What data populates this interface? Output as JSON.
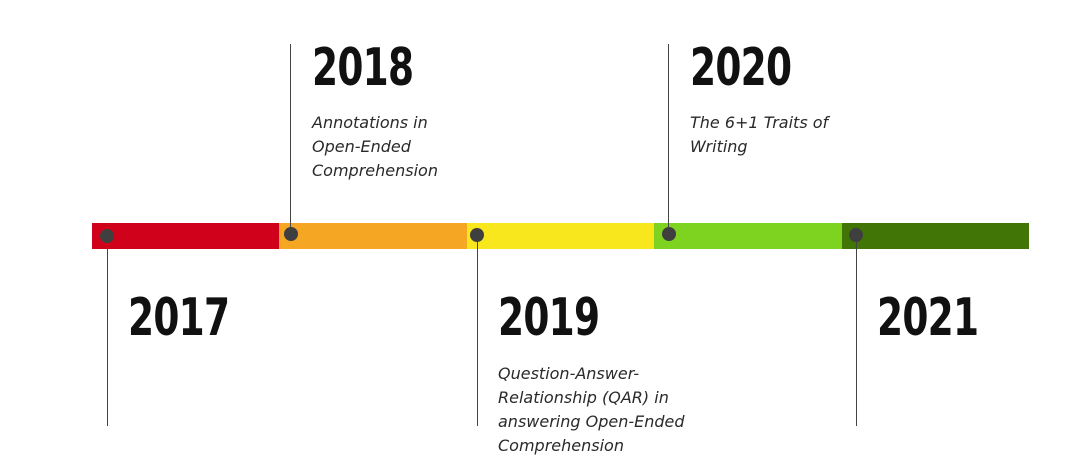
{
  "colors": {
    "segments": [
      "#d0021b",
      "#f5a623",
      "#f8e71c",
      "#7ed321",
      "#417505"
    ],
    "dot": "#3f3f3f",
    "connector": "#444444"
  },
  "events": [
    {
      "year": "2017",
      "description": ""
    },
    {
      "year": "2018",
      "description": "Annotations in Open-Ended Comprehension"
    },
    {
      "year": "2019",
      "description": "Question-Answer-Relationship (QAR) in answering Open-Ended Comprehension"
    },
    {
      "year": "2020",
      "description": "The 6+1 Traits of Writing"
    },
    {
      "year": "2021",
      "description": ""
    }
  ]
}
